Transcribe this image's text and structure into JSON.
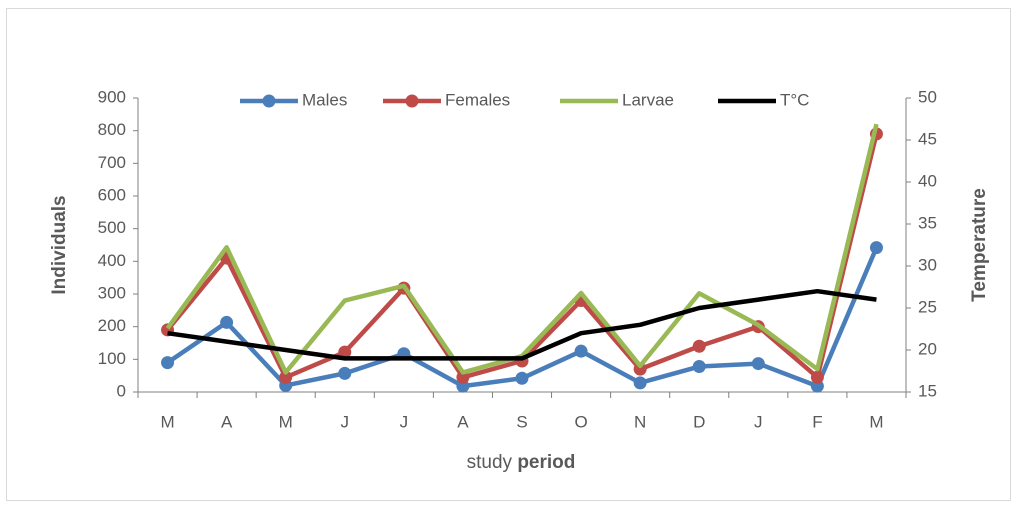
{
  "chart_data": {
    "type": "line",
    "categories": [
      "M",
      "A",
      "M",
      "J",
      "J",
      "A",
      "S",
      "O",
      "N",
      "D",
      "J",
      "F",
      "M"
    ],
    "y_label": "Individuals",
    "y2_label": "Temperature",
    "x_label": "study",
    "x_label_bold": "period",
    "ylim": [
      0,
      900
    ],
    "yticks": [
      0,
      100,
      200,
      300,
      400,
      500,
      600,
      700,
      800,
      900
    ],
    "y2lim": [
      15,
      50
    ],
    "y2ticks": [
      15,
      20,
      25,
      30,
      35,
      40,
      45,
      50
    ],
    "legend": "top",
    "series": [
      {
        "name": "Males",
        "color": "#4a7ebb",
        "marker": true,
        "values": [
          90,
          213,
          20,
          57,
          117,
          18,
          42,
          125,
          28,
          78,
          87,
          18,
          442
        ]
      },
      {
        "name": "Females",
        "color": "#be4b48",
        "marker": true,
        "values": [
          190,
          410,
          45,
          122,
          318,
          45,
          95,
          280,
          70,
          140,
          200,
          45,
          790
        ]
      },
      {
        "name": "Larvae",
        "color": "#98b954",
        "marker": false,
        "values": [
          195,
          443,
          60,
          280,
          325,
          60,
          110,
          303,
          80,
          302,
          205,
          70,
          820
        ]
      },
      {
        "name": "T°C",
        "color": "#000000",
        "marker": false,
        "axis": "y2",
        "values": [
          22,
          21,
          20,
          19,
          19,
          19,
          19,
          22,
          23,
          25,
          26,
          27,
          26
        ]
      }
    ]
  }
}
